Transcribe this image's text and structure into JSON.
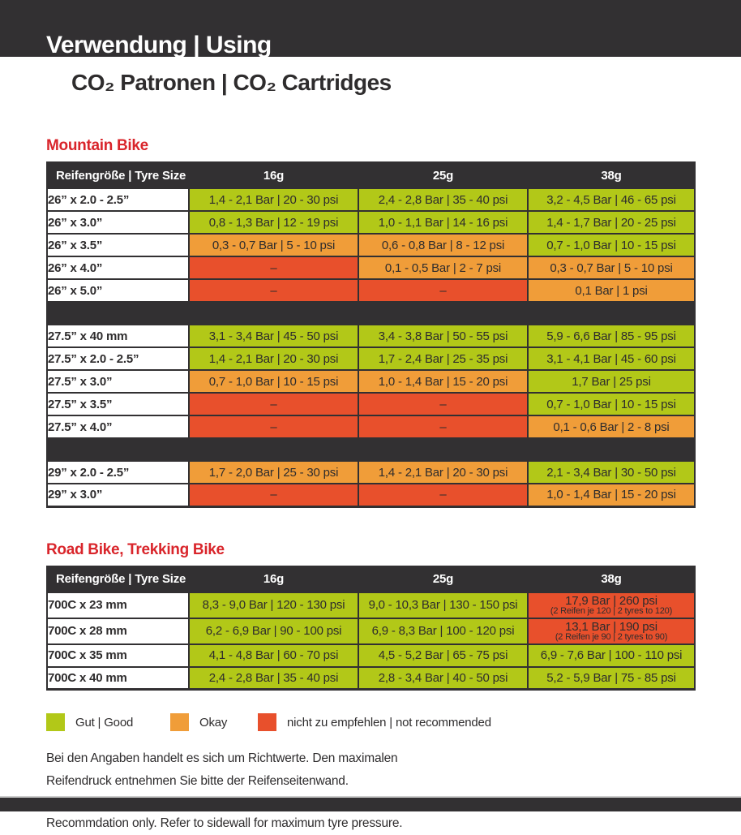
{
  "page": {
    "banner_title": "Verwendung | Using",
    "subtitle": "CO₂ Patronen | CO₂ Cartridges"
  },
  "colors": {
    "good": "#b2c818",
    "okay": "#f09d39",
    "bad": "#e8502c",
    "header_dark": "#323032",
    "section_red": "#d9252b"
  },
  "tables": {
    "columns": [
      "Reifengröße | Tyre Size",
      "16g",
      "25g",
      "38g"
    ],
    "mountain": {
      "title": "Mountain Bike",
      "groups": [
        {
          "rows": [
            {
              "size": "26” x 2.0 - 2.5”",
              "cells": [
                {
                  "text": "1,4 - 2,1 Bar | 20 - 30 psi",
                  "status": "good"
                },
                {
                  "text": "2,4 - 2,8 Bar | 35 - 40 psi",
                  "status": "good"
                },
                {
                  "text": "3,2 - 4,5 Bar | 46 - 65 psi",
                  "status": "good"
                }
              ]
            },
            {
              "size": "26” x 3.0”",
              "cells": [
                {
                  "text": "0,8 - 1,3 Bar | 12 - 19 psi",
                  "status": "good"
                },
                {
                  "text": "1,0 - 1,1 Bar | 14 - 16 psi",
                  "status": "good"
                },
                {
                  "text": "1,4 - 1,7 Bar | 20 - 25 psi",
                  "status": "good"
                }
              ]
            },
            {
              "size": "26” x 3.5”",
              "cells": [
                {
                  "text": "0,3 - 0,7 Bar | 5 - 10 psi",
                  "status": "okay"
                },
                {
                  "text": "0,6 - 0,8 Bar | 8 - 12 psi",
                  "status": "okay"
                },
                {
                  "text": "0,7 - 1,0 Bar | 10 - 15 psi",
                  "status": "good"
                }
              ]
            },
            {
              "size": "26” x 4.0”",
              "cells": [
                {
                  "text": "–",
                  "status": "bad"
                },
                {
                  "text": "0,1 - 0,5 Bar | 2 - 7 psi",
                  "status": "okay"
                },
                {
                  "text": "0,3 - 0,7 Bar | 5 - 10 psi",
                  "status": "okay"
                }
              ]
            },
            {
              "size": "26” x 5.0”",
              "cells": [
                {
                  "text": "–",
                  "status": "bad"
                },
                {
                  "text": "–",
                  "status": "bad"
                },
                {
                  "text": "0,1 Bar | 1 psi",
                  "status": "okay"
                }
              ]
            }
          ]
        },
        {
          "rows": [
            {
              "size": "27.5” x 40 mm",
              "cells": [
                {
                  "text": "3,1 - 3,4 Bar | 45 - 50 psi",
                  "status": "good"
                },
                {
                  "text": "3,4 - 3,8 Bar | 50 - 55 psi",
                  "status": "good"
                },
                {
                  "text": "5,9 - 6,6 Bar | 85 - 95 psi",
                  "status": "good"
                }
              ]
            },
            {
              "size": "27.5” x 2.0 - 2.5”",
              "cells": [
                {
                  "text": "1,4 - 2,1 Bar | 20 - 30 psi",
                  "status": "good"
                },
                {
                  "text": "1,7 - 2,4 Bar | 25 - 35 psi",
                  "status": "good"
                },
                {
                  "text": "3,1 - 4,1 Bar | 45 - 60 psi",
                  "status": "good"
                }
              ]
            },
            {
              "size": "27.5” x 3.0”",
              "cells": [
                {
                  "text": "0,7 - 1,0 Bar | 10 - 15 psi",
                  "status": "okay"
                },
                {
                  "text": "1,0 - 1,4 Bar | 15 - 20 psi",
                  "status": "okay"
                },
                {
                  "text": "1,7 Bar | 25 psi",
                  "status": "good"
                }
              ]
            },
            {
              "size": "27.5” x 3.5”",
              "cells": [
                {
                  "text": "–",
                  "status": "bad"
                },
                {
                  "text": "–",
                  "status": "bad"
                },
                {
                  "text": "0,7 - 1,0 Bar | 10 - 15 psi",
                  "status": "good"
                }
              ]
            },
            {
              "size": "27.5” x 4.0”",
              "cells": [
                {
                  "text": "–",
                  "status": "bad"
                },
                {
                  "text": "–",
                  "status": "bad"
                },
                {
                  "text": "0,1 - 0,6 Bar | 2 - 8 psi",
                  "status": "okay"
                }
              ]
            }
          ]
        },
        {
          "rows": [
            {
              "size": "29” x 2.0 - 2.5”",
              "cells": [
                {
                  "text": "1,7 - 2,0 Bar | 25 - 30 psi",
                  "status": "okay"
                },
                {
                  "text": "1,4 - 2,1 Bar | 20 - 30 psi",
                  "status": "okay"
                },
                {
                  "text": "2,1 - 3,4 Bar | 30 - 50 psi",
                  "status": "good"
                }
              ]
            },
            {
              "size": "29” x 3.0”",
              "cells": [
                {
                  "text": "–",
                  "status": "bad"
                },
                {
                  "text": "–",
                  "status": "bad"
                },
                {
                  "text": "1,0 - 1,4 Bar | 15 - 20 psi",
                  "status": "okay"
                }
              ]
            }
          ]
        }
      ]
    },
    "road": {
      "title": "Road Bike, Trekking Bike",
      "groups": [
        {
          "rows": [
            {
              "size": "700C x 23 mm",
              "tall": true,
              "cells": [
                {
                  "text": "8,3 - 9,0 Bar | 120 - 130 psi",
                  "status": "good"
                },
                {
                  "text": "9,0 - 10,3 Bar | 130 - 150 psi",
                  "status": "good"
                },
                {
                  "text": "17,9 Bar | 260 psi",
                  "note": "(2 Reifen je 120 | 2 tyres to 120)",
                  "status": "bad"
                }
              ]
            },
            {
              "size": "700C x 28 mm",
              "tall": true,
              "cells": [
                {
                  "text": "6,2 - 6,9 Bar | 90 - 100 psi",
                  "status": "good"
                },
                {
                  "text": "6,9 - 8,3 Bar | 100 - 120 psi",
                  "status": "good"
                },
                {
                  "text": "13,1 Bar | 190 psi",
                  "note": "(2 Reifen je 90 | 2 tyres to 90)",
                  "status": "bad"
                }
              ]
            },
            {
              "size": "700C x 35 mm",
              "cells": [
                {
                  "text": "4,1 - 4,8 Bar | 60 - 70 psi",
                  "status": "good"
                },
                {
                  "text": "4,5 - 5,2 Bar | 65 - 75 psi",
                  "status": "good"
                },
                {
                  "text": "6,9 - 7,6 Bar | 100 - 110 psi",
                  "status": "good"
                }
              ]
            },
            {
              "size": "700C x 40 mm",
              "cells": [
                {
                  "text": "2,4 - 2,8 Bar | 35 - 40 psi",
                  "status": "good"
                },
                {
                  "text": "2,8 - 3,4 Bar | 40 - 50 psi",
                  "status": "good"
                },
                {
                  "text": "5,2 - 5,9 Bar | 75 - 85 psi",
                  "status": "good"
                }
              ]
            }
          ]
        }
      ]
    }
  },
  "legend": {
    "items": [
      {
        "label": "Gut | Good",
        "status": "good"
      },
      {
        "label": "Okay",
        "status": "okay"
      },
      {
        "label": "nicht zu empfehlen | not recommended",
        "status": "bad"
      }
    ]
  },
  "notes": {
    "de_line1": "Bei den Angaben handelt es sich um Richtwerte. Den maximalen",
    "de_line2": "Reifendruck entnehmen Sie bitte der Reifenseitenwand.",
    "en": "Recommdation only. Refer to sidewall for maximum tyre pressure."
  }
}
